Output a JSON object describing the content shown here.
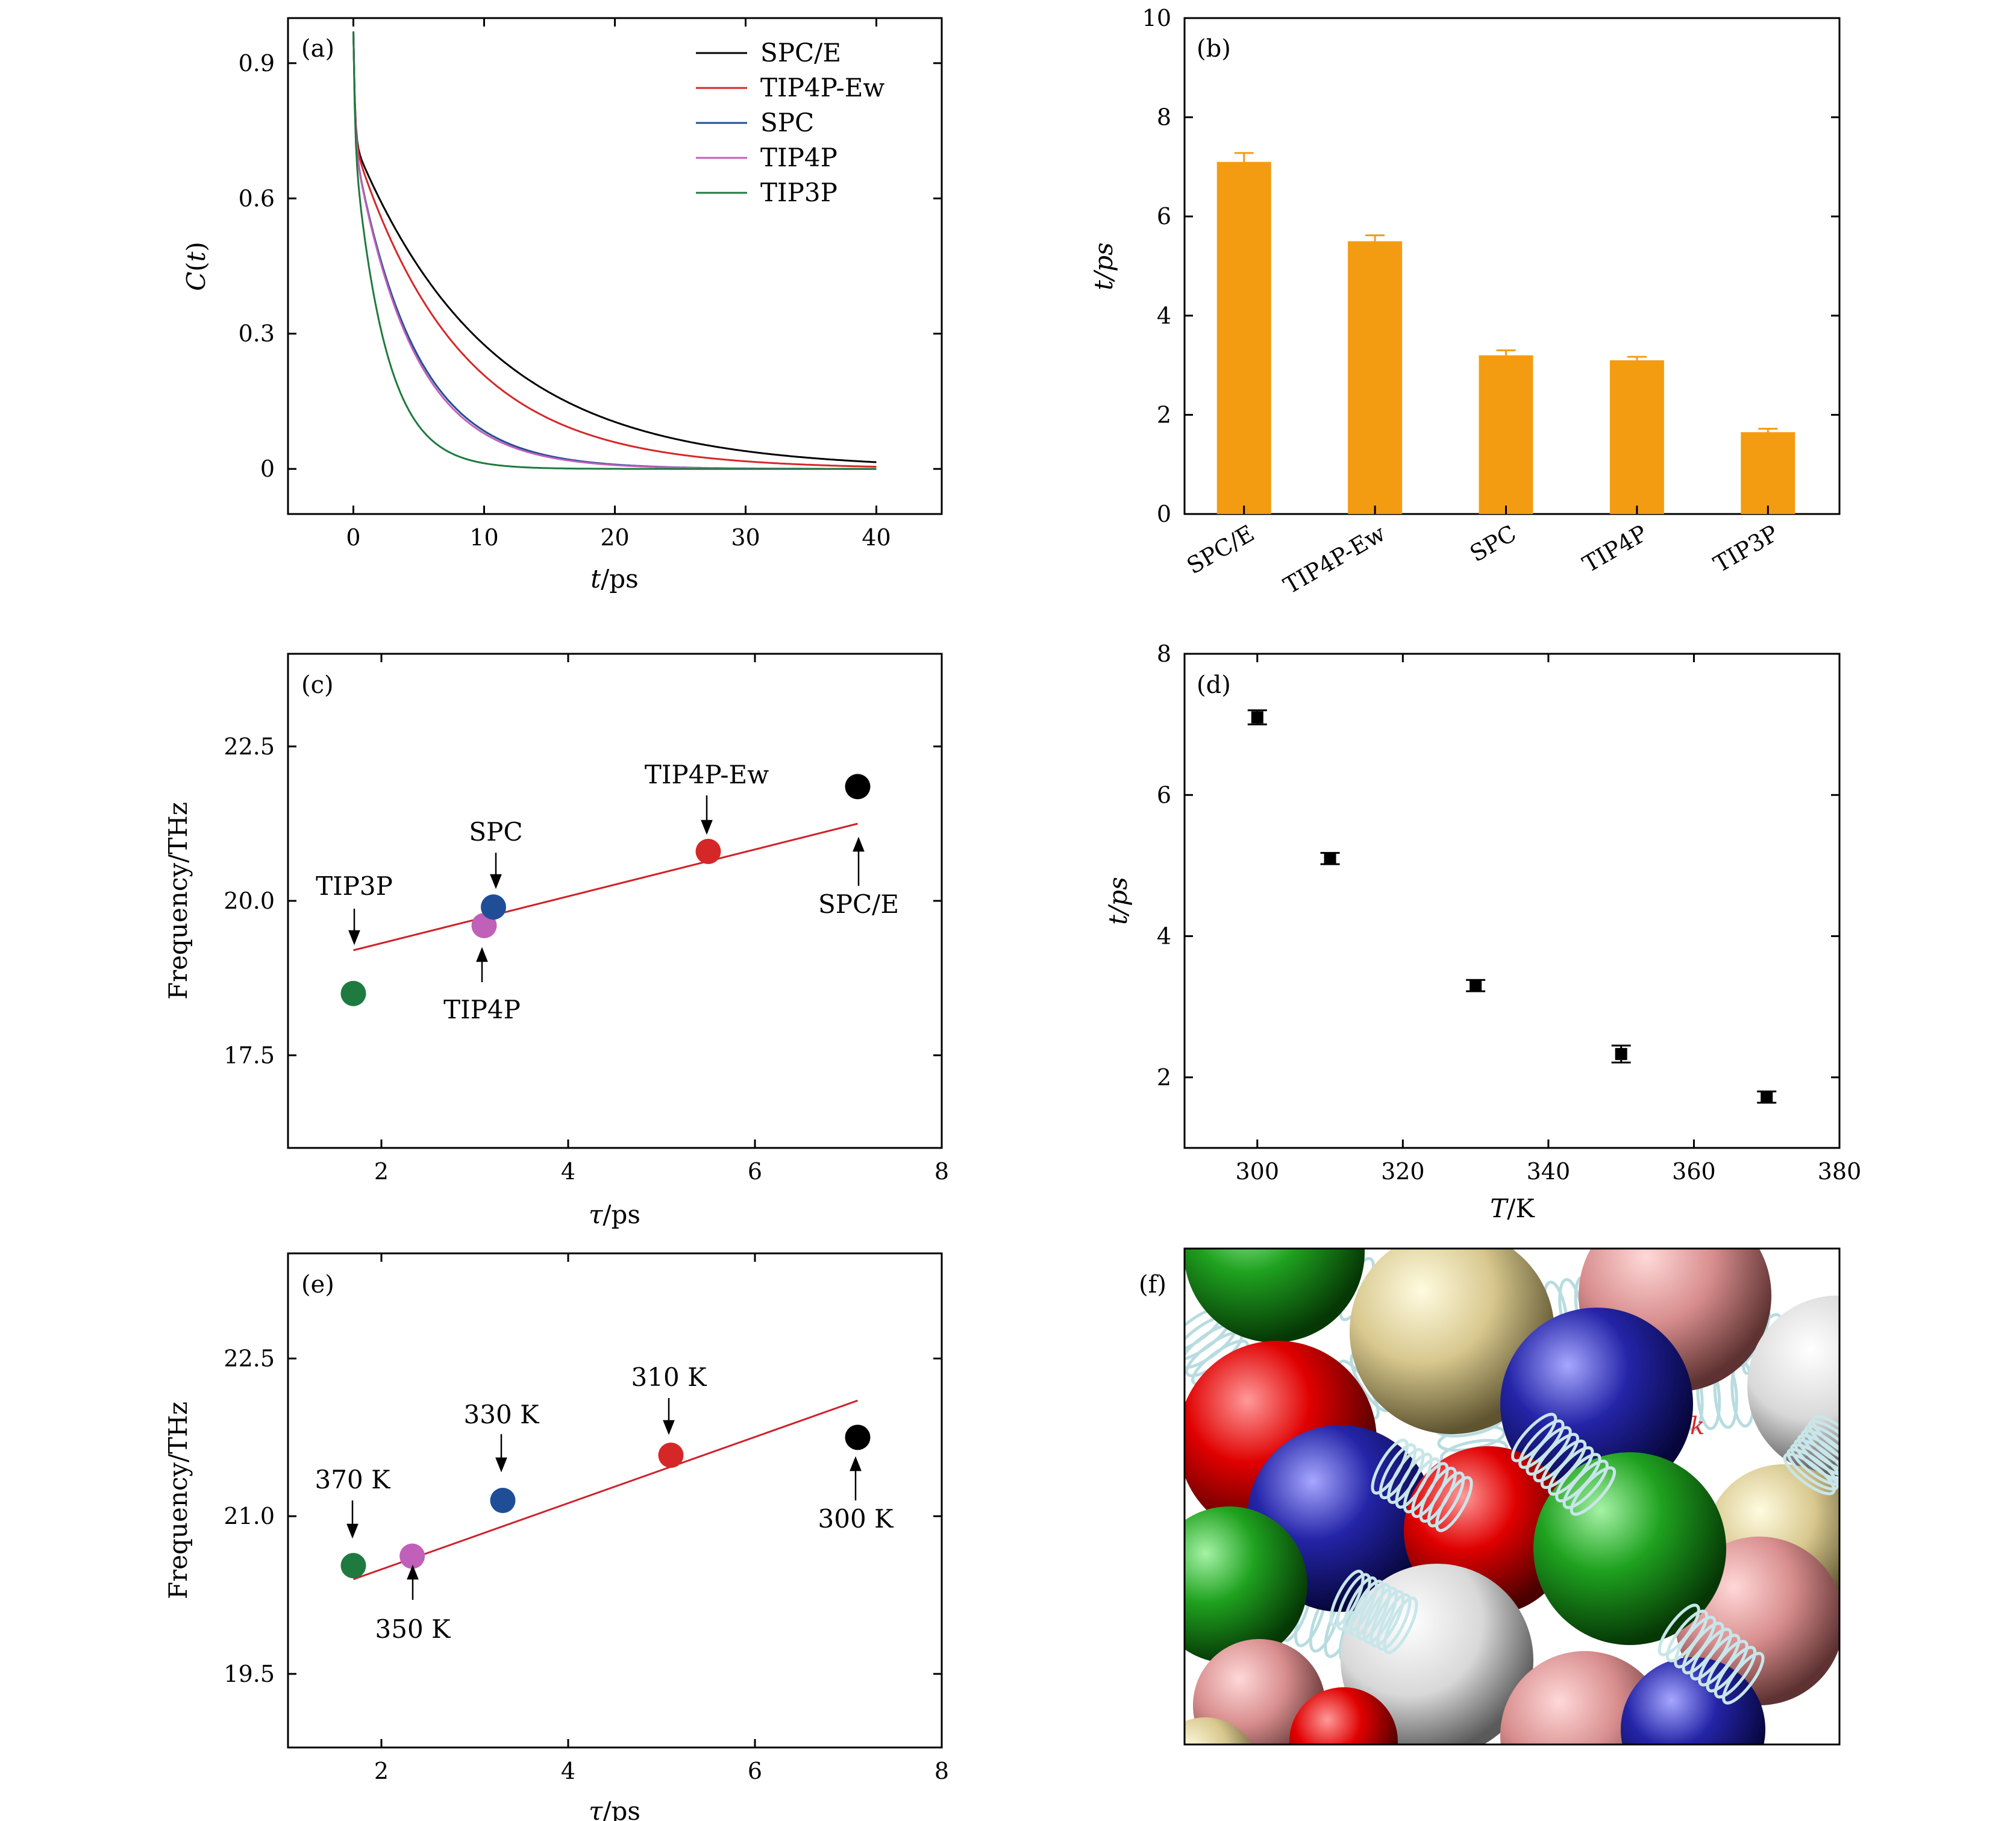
{
  "figure": {
    "colors": {
      "black": "#000000",
      "red": "#d62728",
      "blue": "#1f4e96",
      "pink": "#c060b8",
      "green": "#1e7a3e",
      "orange": "#f39c12",
      "fit": "#d0202a"
    }
  },
  "chart_data": [
    {
      "id": "a",
      "panel_label": "(a)",
      "type": "line",
      "xlabel_var": "t",
      "xlabel_unit": "/ps",
      "ylabel_var": "C",
      "ylabel_arg": "t",
      "xlim": [
        -5,
        45
      ],
      "ylim": [
        -0.1,
        1.0
      ],
      "xticks": [
        0,
        10,
        20,
        30,
        40
      ],
      "yticks": [
        0,
        0.3,
        0.6,
        0.9
      ],
      "ytick_labels": [
        "0",
        "0.3",
        "0.6",
        "0.9"
      ],
      "series": [
        {
          "name": "SPC/E",
          "color": "#000000",
          "tau": 7.1
        },
        {
          "name": "TIP4P-Ew",
          "color": "#d62728",
          "tau": 5.5
        },
        {
          "name": "SPC",
          "color": "#1f4e96",
          "tau": 3.2
        },
        {
          "name": "TIP4P",
          "color": "#c060b8",
          "tau": 3.1
        },
        {
          "name": "TIP3P",
          "color": "#1e7a3e",
          "tau": 1.7
        }
      ],
      "x_range": [
        0,
        40
      ],
      "legend_position": "top-right"
    },
    {
      "id": "b",
      "panel_label": "(b)",
      "type": "bar",
      "ylabel": "t/ps",
      "categories": [
        "SPC/E",
        "TIP4P-Ew",
        "SPC",
        "TIP4P",
        "TIP3P"
      ],
      "values": [
        7.1,
        5.5,
        3.2,
        3.1,
        1.65
      ],
      "errors": [
        0.18,
        0.12,
        0.1,
        0.07,
        0.07
      ],
      "ylim": [
        0,
        10
      ],
      "yticks": [
        0,
        2,
        4,
        6,
        8,
        10
      ],
      "color": "#f39c12"
    },
    {
      "id": "c",
      "panel_label": "(c)",
      "type": "scatter",
      "xlabel_var": "τ",
      "xlabel_unit": "/ps",
      "ylabel": "Frequency/THz",
      "xlim": [
        1,
        8
      ],
      "ylim": [
        16.0,
        24.0
      ],
      "xticks": [
        2,
        4,
        6,
        8
      ],
      "yticks": [
        17.5,
        20.0,
        22.5
      ],
      "ytick_labels": [
        "17.5",
        "20.0",
        "22.5"
      ],
      "points": [
        {
          "label": "TIP3P",
          "x": 1.7,
          "y": 18.5,
          "color": "#1e7a3e"
        },
        {
          "label": "TIP4P",
          "x": 3.1,
          "y": 19.6,
          "color": "#c060b8"
        },
        {
          "label": "SPC",
          "x": 3.2,
          "y": 19.9,
          "color": "#1f4e96"
        },
        {
          "label": "TIP4P-Ew",
          "x": 5.5,
          "y": 20.8,
          "color": "#d62728"
        },
        {
          "label": "SPC/E",
          "x": 7.1,
          "y": 21.85,
          "color": "#000000"
        }
      ],
      "fit_line": [
        [
          1.7,
          19.2
        ],
        [
          7.1,
          21.25
        ]
      ]
    },
    {
      "id": "d",
      "panel_label": "(d)",
      "type": "scatter",
      "xlabel_var": "T",
      "xlabel_unit": "/K",
      "ylabel": "t/ps",
      "xlim": [
        290,
        380
      ],
      "ylim": [
        1,
        8
      ],
      "xticks": [
        300,
        320,
        340,
        360,
        380
      ],
      "yticks": [
        2,
        4,
        6,
        8
      ],
      "points": [
        {
          "x": 300,
          "y": 7.1,
          "err": 0.1
        },
        {
          "x": 310,
          "y": 5.1,
          "err": 0.08
        },
        {
          "x": 330,
          "y": 3.3,
          "err": 0.08
        },
        {
          "x": 350,
          "y": 2.33,
          "err": 0.12
        },
        {
          "x": 370,
          "y": 1.72,
          "err": 0.08
        }
      ]
    },
    {
      "id": "e",
      "panel_label": "(e)",
      "type": "scatter",
      "xlabel_var": "τ",
      "xlabel_unit": "/ps",
      "ylabel": "Frequency/THz",
      "xlim": [
        1,
        8
      ],
      "ylim": [
        18.8,
        23.5
      ],
      "xticks": [
        2,
        4,
        6,
        8
      ],
      "yticks": [
        19.5,
        21.0,
        22.5
      ],
      "ytick_labels": [
        "19.5",
        "21.0",
        "22.5"
      ],
      "points": [
        {
          "label": "370 K",
          "x": 1.7,
          "y": 20.53,
          "color": "#1e7a3e"
        },
        {
          "label": "350 K",
          "x": 2.33,
          "y": 20.62,
          "color": "#c060b8"
        },
        {
          "label": "330 K",
          "x": 3.3,
          "y": 21.15,
          "color": "#1f4e96"
        },
        {
          "label": "310 K",
          "x": 5.1,
          "y": 21.58,
          "color": "#d62728"
        },
        {
          "label": "300 K",
          "x": 7.1,
          "y": 21.75,
          "color": "#000000"
        }
      ],
      "fit_line": [
        [
          1.7,
          20.4
        ],
        [
          7.1,
          22.1
        ]
      ]
    }
  ],
  "panel_f": {
    "panel_label": "(f)",
    "spring_label": "k"
  }
}
